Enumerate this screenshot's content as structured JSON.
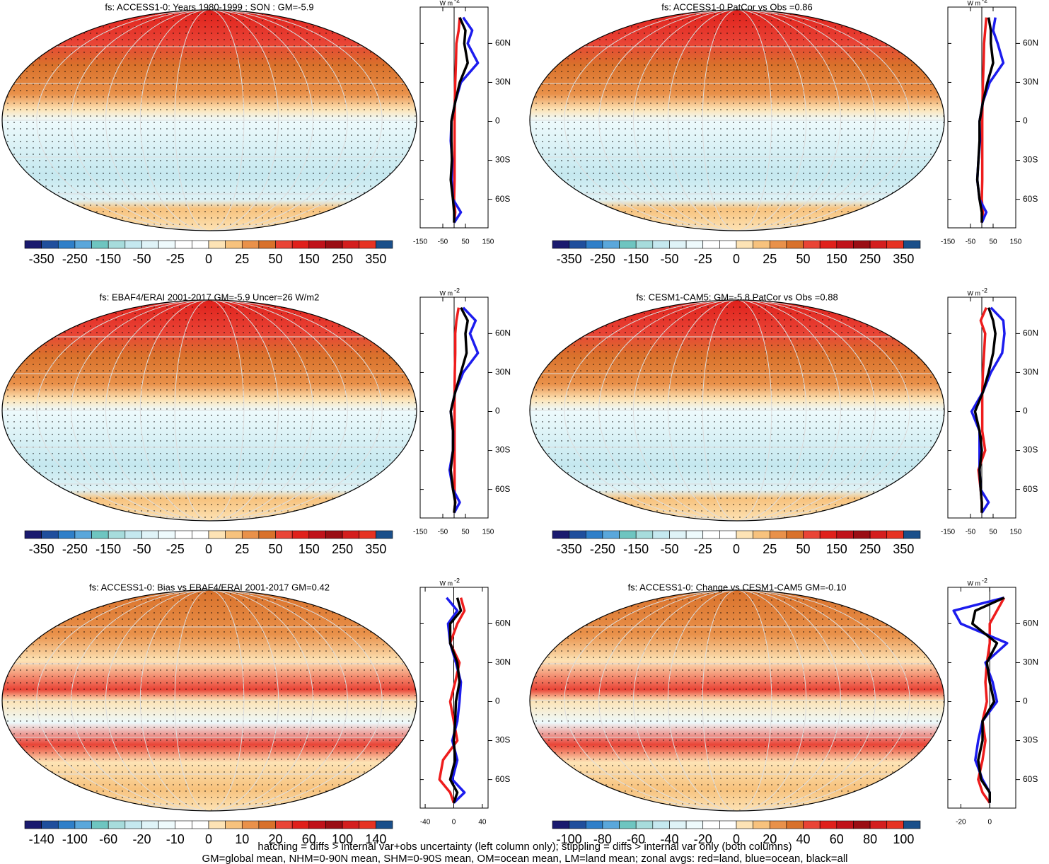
{
  "chart_data": [
    {
      "type": "line",
      "title": "fs: ACCESS1-0: Years 1980-1999 : SON : GM=-5.9",
      "colorbar": {
        "colors": [
          "#1a1a6e",
          "#1f4e9c",
          "#2f7fc9",
          "#5aa7db",
          "#6ec5c0",
          "#a7dcdc",
          "#c5e8ef",
          "#dff3f7",
          "#eefafc",
          "#ffffff",
          "#ffffff",
          "#fde3b5",
          "#f7c27d",
          "#e9914a",
          "#d9712b",
          "#e94436",
          "#e0201b",
          "#c0121a",
          "#9a0d14",
          "#d41e1e",
          "#e63222",
          "#1a4f8a"
        ],
        "ticks": [
          -350,
          -250,
          -150,
          -50,
          -25,
          0,
          25,
          50,
          150,
          250,
          350
        ]
      },
      "unit_base": "W m",
      "unit_exp": "-2",
      "xlim": [
        -150,
        150
      ],
      "xticks": [
        -150,
        -50,
        50,
        150
      ],
      "ylim": [
        -82,
        88
      ],
      "yticks": [
        {
          "value": 60,
          "label": "60N"
        },
        {
          "value": 30,
          "label": "30N"
        },
        0,
        {
          "value": -30,
          "label": "30S"
        },
        {
          "value": -60,
          "label": "60S"
        }
      ],
      "y": [
        80,
        70,
        60,
        45,
        30,
        15,
        0,
        -15,
        -30,
        -45,
        -60,
        -70,
        -78
      ],
      "series": [
        {
          "color": "#ee1c1c",
          "values": [
            25,
            20,
            10,
            8,
            5,
            3,
            2,
            2,
            2,
            2,
            0,
            5,
            0
          ]
        },
        {
          "color": "#1c1cee",
          "values": [
            40,
            80,
            60,
            105,
            30,
            5,
            -12,
            -15,
            -8,
            -10,
            -5,
            30,
            0
          ]
        },
        {
          "color": "#000000",
          "values": [
            25,
            50,
            45,
            60,
            25,
            5,
            -12,
            -12,
            -10,
            -15,
            -5,
            0,
            0
          ]
        }
      ]
    },
    {
      "type": "line",
      "title": "fs: ACCESS1-0 PatCor vs Obs =0.86",
      "colorbar": {
        "colors": [
          "#1a1a6e",
          "#1f4e9c",
          "#2f7fc9",
          "#5aa7db",
          "#6ec5c0",
          "#a7dcdc",
          "#c5e8ef",
          "#dff3f7",
          "#eefafc",
          "#ffffff",
          "#ffffff",
          "#fde3b5",
          "#f7c27d",
          "#e9914a",
          "#d9712b",
          "#e94436",
          "#e0201b",
          "#c0121a",
          "#9a0d14",
          "#d41e1e",
          "#e63222",
          "#1a4f8a"
        ],
        "ticks": [
          -350,
          -250,
          -150,
          -50,
          -25,
          0,
          25,
          50,
          150,
          250,
          350
        ]
      },
      "unit_base": "W m",
      "unit_exp": "-2",
      "xlim": [
        -150,
        150
      ],
      "xticks": [
        -150,
        -50,
        50,
        150
      ],
      "ylim": [
        -82,
        88
      ],
      "yticks": [
        {
          "value": 60,
          "label": "60N"
        },
        {
          "value": 30,
          "label": "30N"
        },
        0,
        {
          "value": -30,
          "label": "30S"
        },
        {
          "value": -60,
          "label": "60S"
        }
      ],
      "y": [
        80,
        70,
        60,
        45,
        30,
        15,
        0,
        -15,
        -30,
        -45,
        -60,
        -70,
        -78
      ],
      "series": [
        {
          "color": "#ee1c1c",
          "values": [
            20,
            15,
            10,
            8,
            5,
            3,
            2,
            2,
            2,
            2,
            0,
            5,
            0
          ]
        },
        {
          "color": "#1c1cee",
          "values": [
            60,
            50,
            70,
            95,
            35,
            5,
            -10,
            -8,
            -15,
            -20,
            -10,
            20,
            0
          ]
        },
        {
          "color": "#000000",
          "values": [
            30,
            40,
            40,
            50,
            25,
            5,
            -10,
            -10,
            -15,
            -20,
            -10,
            0,
            0
          ]
        }
      ]
    },
    {
      "type": "line",
      "title": "fs: EBAF4/ERAI 2001-2017 GM=-5.9 Uncer=26 W/m2",
      "colorbar": {
        "colors": [
          "#1a1a6e",
          "#1f4e9c",
          "#2f7fc9",
          "#5aa7db",
          "#6ec5c0",
          "#a7dcdc",
          "#c5e8ef",
          "#dff3f7",
          "#eefafc",
          "#ffffff",
          "#ffffff",
          "#fde3b5",
          "#f7c27d",
          "#e9914a",
          "#d9712b",
          "#e94436",
          "#e0201b",
          "#c0121a",
          "#9a0d14",
          "#d41e1e",
          "#e63222",
          "#1a4f8a"
        ],
        "ticks": [
          -350,
          -250,
          -150,
          -50,
          -25,
          0,
          25,
          50,
          150,
          250,
          350
        ]
      },
      "unit_base": "W m",
      "unit_exp": "-2",
      "xlim": [
        -150,
        150
      ],
      "xticks": [
        -150,
        -50,
        50,
        150
      ],
      "ylim": [
        -82,
        88
      ],
      "yticks": [
        {
          "value": 60,
          "label": "60N"
        },
        {
          "value": 30,
          "label": "30N"
        },
        0,
        {
          "value": -30,
          "label": "30S"
        },
        {
          "value": -60,
          "label": "60S"
        }
      ],
      "y": [
        80,
        70,
        60,
        45,
        30,
        15,
        0,
        -15,
        -30,
        -45,
        -60,
        -70,
        -78
      ],
      "series": [
        {
          "color": "#ee1c1c",
          "values": [
            20,
            10,
            5,
            5,
            3,
            2,
            2,
            2,
            2,
            2,
            2,
            5,
            0
          ]
        },
        {
          "color": "#1c1cee",
          "values": [
            40,
            95,
            70,
            105,
            40,
            5,
            -15,
            -5,
            -5,
            -20,
            -5,
            25,
            0
          ]
        },
        {
          "color": "#000000",
          "values": [
            30,
            60,
            50,
            55,
            30,
            5,
            -15,
            -5,
            -5,
            -15,
            -5,
            5,
            0
          ]
        }
      ]
    },
    {
      "type": "line",
      "title": "fs: CESM1-CAM5: GM=-5.8 PatCor vs Obs =0.88",
      "colorbar": {
        "colors": [
          "#1a1a6e",
          "#1f4e9c",
          "#2f7fc9",
          "#5aa7db",
          "#6ec5c0",
          "#a7dcdc",
          "#c5e8ef",
          "#dff3f7",
          "#eefafc",
          "#ffffff",
          "#ffffff",
          "#fde3b5",
          "#f7c27d",
          "#e9914a",
          "#d9712b",
          "#e94436",
          "#e0201b",
          "#c0121a",
          "#9a0d14",
          "#d41e1e",
          "#e63222",
          "#1a4f8a"
        ],
        "ticks": [
          -350,
          -250,
          -150,
          -50,
          -25,
          0,
          25,
          50,
          150,
          250,
          350
        ]
      },
      "unit_base": "W m",
      "unit_exp": "-2",
      "xlim": [
        -150,
        150
      ],
      "xticks": [
        -150,
        -50,
        50,
        150
      ],
      "ylim": [
        -82,
        88
      ],
      "yticks": [
        {
          "value": 60,
          "label": "60N"
        },
        {
          "value": 30,
          "label": "30N"
        },
        0,
        {
          "value": -30,
          "label": "30S"
        },
        {
          "value": -60,
          "label": "60S"
        }
      ],
      "y": [
        80,
        70,
        60,
        45,
        30,
        15,
        0,
        -15,
        -30,
        -45,
        -60,
        -70,
        -78
      ],
      "series": [
        {
          "color": "#ee1c1c",
          "values": [
            20,
            -5,
            15,
            10,
            5,
            2,
            2,
            2,
            15,
            -15,
            -5,
            0,
            0
          ]
        },
        {
          "color": "#1c1cee",
          "values": [
            40,
            95,
            100,
            90,
            40,
            5,
            -45,
            -10,
            -10,
            -10,
            -5,
            30,
            0
          ]
        },
        {
          "color": "#000000",
          "values": [
            30,
            50,
            60,
            50,
            30,
            5,
            -30,
            -10,
            0,
            -10,
            -5,
            0,
            0
          ]
        }
      ]
    },
    {
      "type": "line",
      "title": "fs: ACCESS1-0: Bias vs EBAF4/ERAI 2001-2017  GM=0.42",
      "colorbar": {
        "colors": [
          "#1a1a6e",
          "#1f4e9c",
          "#2f7fc9",
          "#5aa7db",
          "#6ec5c0",
          "#a7dcdc",
          "#c5e8ef",
          "#dff3f7",
          "#eefafc",
          "#ffffff",
          "#ffffff",
          "#fde3b5",
          "#f7c27d",
          "#e9914a",
          "#d9712b",
          "#e94436",
          "#e0201b",
          "#c0121a",
          "#9a0d14",
          "#d41e1e",
          "#e63222",
          "#1a4f8a"
        ],
        "ticks": [
          -140,
          -100,
          -60,
          -20,
          -10,
          0,
          10,
          20,
          60,
          100,
          140
        ]
      },
      "unit_base": "W m",
      "unit_exp": "-2",
      "xlim": [
        -47,
        48
      ],
      "xticks": [
        -40,
        0,
        40
      ],
      "ylim": [
        -82,
        88
      ],
      "yticks": [
        {
          "value": 60,
          "label": "60N"
        },
        {
          "value": 30,
          "label": "30N"
        },
        0,
        {
          "value": -30,
          "label": "30S"
        },
        {
          "value": -60,
          "label": "60S"
        }
      ],
      "y": [
        80,
        70,
        60,
        45,
        30,
        15,
        0,
        -15,
        -30,
        -45,
        -60,
        -70,
        -78
      ],
      "series": [
        {
          "color": "#ee1c1c",
          "values": [
            10,
            15,
            5,
            -5,
            8,
            2,
            -5,
            0,
            5,
            -15,
            -20,
            -5,
            0
          ]
        },
        {
          "color": "#1c1cee",
          "values": [
            -10,
            5,
            -8,
            -5,
            3,
            10,
            8,
            5,
            -2,
            5,
            -2,
            15,
            0
          ]
        },
        {
          "color": "#000000",
          "values": [
            5,
            10,
            -5,
            -5,
            5,
            8,
            3,
            2,
            0,
            2,
            -5,
            5,
            0
          ]
        }
      ]
    },
    {
      "type": "line",
      "title": "fs: ACCESS1-0: Change vs CESM1-CAM5 GM=-0.10",
      "colorbar": {
        "colors": [
          "#1a1a6e",
          "#1f4e9c",
          "#2f7fc9",
          "#5aa7db",
          "#6ec5c0",
          "#a7dcdc",
          "#c5e8ef",
          "#dff3f7",
          "#eefafc",
          "#ffffff",
          "#ffffff",
          "#fde3b5",
          "#f7c27d",
          "#e9914a",
          "#d9712b",
          "#e94436",
          "#e0201b",
          "#c0121a",
          "#9a0d14",
          "#d41e1e",
          "#e63222",
          "#1a4f8a"
        ],
        "ticks": [
          -100,
          -80,
          -60,
          -40,
          -20,
          0,
          20,
          40,
          60,
          80,
          100
        ]
      },
      "unit_base": "W m",
      "unit_exp": "-2",
      "xlim": [
        -29,
        18
      ],
      "xticks": [
        -20,
        0
      ],
      "ylim": [
        -82,
        88
      ],
      "yticks": [
        {
          "value": 60,
          "label": "60N"
        },
        {
          "value": 30,
          "label": "30N"
        },
        0,
        {
          "value": -30,
          "label": "30S"
        },
        {
          "value": -60,
          "label": "60S"
        }
      ],
      "y": [
        80,
        70,
        60,
        45,
        30,
        15,
        0,
        -15,
        -30,
        -45,
        -60,
        -70,
        -78
      ],
      "series": [
        {
          "color": "#ee1c1c",
          "values": [
            10,
            5,
            0,
            0,
            -2,
            -3,
            -2,
            -5,
            -3,
            -5,
            -8,
            -5,
            0
          ]
        },
        {
          "color": "#1c1cee",
          "values": [
            10,
            -25,
            -20,
            12,
            -3,
            2,
            5,
            -5,
            -8,
            -10,
            -5,
            0,
            0
          ]
        },
        {
          "color": "#000000",
          "values": [
            10,
            -10,
            -12,
            5,
            -2,
            0,
            3,
            -5,
            -5,
            -8,
            -6,
            0,
            0
          ]
        }
      ]
    }
  ],
  "footer": [
    "hatching = diffs > internal var+obs uncertainty (left column only); stippling = diffs > internal var only (both columns)",
    "GM=global mean, NHM=0-90N mean, SHM=0-90S mean, OM=ocean mean, LM=land mean; zonal avgs: red=land, blue=ocean, black=all"
  ]
}
